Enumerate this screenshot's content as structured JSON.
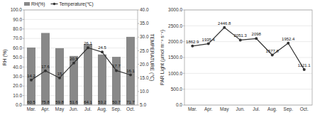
{
  "chart_data": [
    {
      "type": "bar",
      "categories": [
        "Mar.",
        "Apr.",
        "May",
        "Jun.",
        "Jul.",
        "Aug.",
        "Sep.",
        "Oct."
      ],
      "series": [
        {
          "name": "RH(%)",
          "type": "bar",
          "color": "#888888",
          "values": [
            60.5,
            75.8,
            59.8,
            51.6,
            64.1,
            53.2,
            50.7,
            71.7
          ]
        },
        {
          "name": "Temperature(℃)",
          "type": "line",
          "axis": "y2",
          "color": "#333333",
          "marker": "circle",
          "values": [
            14.2,
            17.6,
            15.0,
            20.5,
            26.1,
            24.5,
            17.7,
            16.1
          ]
        }
      ],
      "y_label": "RH (%)",
      "y2_label": "TEMPERATURE (℃)",
      "ylim": [
        0,
        100
      ],
      "yticks": [
        {
          "value": 0,
          "label": "0.0"
        },
        {
          "value": 10,
          "label": "10.0"
        },
        {
          "value": 20,
          "label": "20.0"
        },
        {
          "value": 30,
          "label": "30.0"
        },
        {
          "value": 40,
          "label": "40.0"
        },
        {
          "value": 50,
          "label": "50.0"
        },
        {
          "value": 60,
          "label": "60.0"
        },
        {
          "value": 70,
          "label": "70.0"
        },
        {
          "value": 80,
          "label": "80.0"
        },
        {
          "value": 90,
          "label": "90.0"
        },
        {
          "value": 100,
          "label": "100.0"
        }
      ],
      "y2lim": [
        5,
        40
      ],
      "y2ticks": [
        {
          "value": 5,
          "label": "5.0"
        },
        {
          "value": 10,
          "label": "10.0"
        },
        {
          "value": 15,
          "label": "15.0"
        },
        {
          "value": 20,
          "label": "20.0"
        },
        {
          "value": 25,
          "label": "25.0"
        },
        {
          "value": 30,
          "label": "30.0"
        },
        {
          "value": 35,
          "label": "35.0"
        },
        {
          "value": 40,
          "label": "40.0"
        }
      ],
      "grid": true,
      "legend": "upper left",
      "data_labels": true
    },
    {
      "type": "line",
      "categories": [
        "Mar.",
        "Apr.",
        "May",
        "Jun.",
        "Jul.",
        "Aug.",
        "Sep.",
        "Oct."
      ],
      "series": [
        {
          "color": "#333333",
          "marker": "circle",
          "values": [
            1862.9,
            1935.4,
            2446.8,
            2051.3,
            2098.0,
            1577.8,
            1952.4,
            1121.1
          ]
        }
      ],
      "y_label": "PAR Light (µmol m⁻² s⁻¹)",
      "ylim": [
        0,
        3000
      ],
      "yticks": [
        {
          "value": 0,
          "label": "0.0"
        },
        {
          "value": 500,
          "label": "500.0"
        },
        {
          "value": 1000,
          "label": "1000.0"
        },
        {
          "value": 1500,
          "label": "1500.0"
        },
        {
          "value": 2000,
          "label": "2000.0"
        },
        {
          "value": 2500,
          "label": "2500.0"
        },
        {
          "value": 3000,
          "label": "3000.0"
        }
      ],
      "grid": true,
      "data_labels": true
    }
  ]
}
